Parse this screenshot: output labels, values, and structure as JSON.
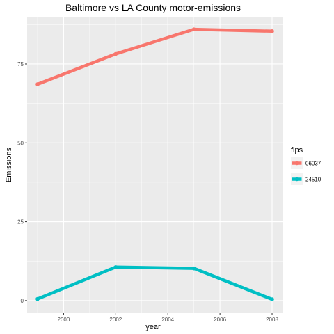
{
  "chart_data": {
    "type": "line",
    "title": "Baltimore vs LA County motor-emissions",
    "xlabel": "year",
    "ylabel": "Emissions",
    "x": [
      1999,
      2002,
      2005,
      2008
    ],
    "xlim": [
      1998.6,
      2008.4
    ],
    "ylim": [
      -4,
      90
    ],
    "xticks": [
      2000,
      2002,
      2004,
      2006,
      2008
    ],
    "yticks": [
      0,
      25,
      50,
      75
    ],
    "grid": true,
    "legend": {
      "title": "fips",
      "position": "right"
    },
    "series": [
      {
        "name": "06037",
        "color": "#F8766D",
        "values": [
          68.6,
          78.2,
          86.0,
          85.4
        ]
      },
      {
        "name": "24510",
        "color": "#00BFC4",
        "values": [
          0.5,
          10.6,
          10.2,
          0.4
        ]
      }
    ]
  }
}
